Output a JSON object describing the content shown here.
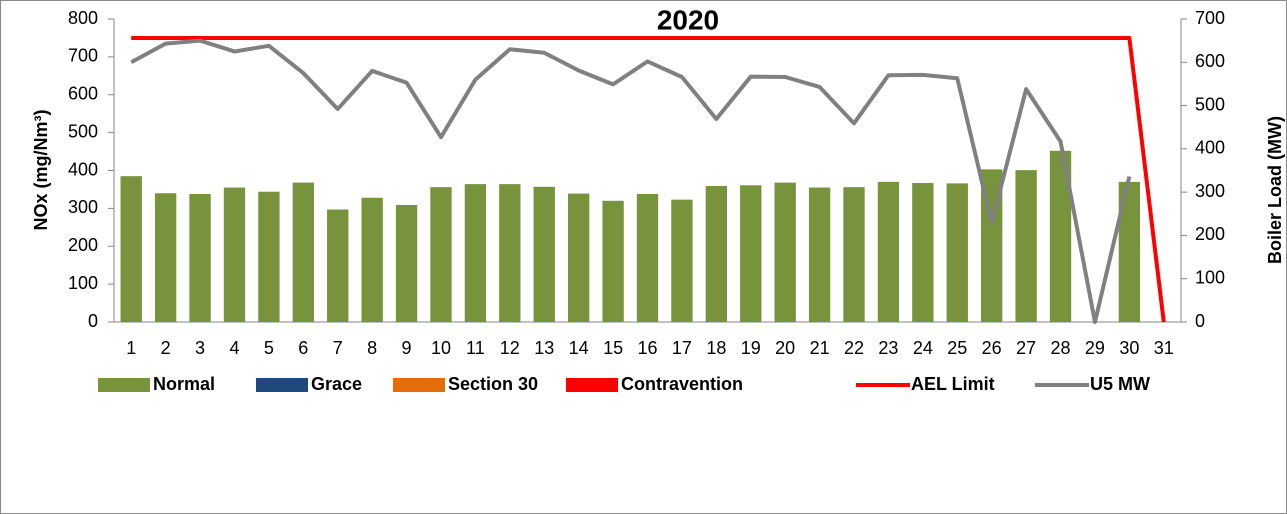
{
  "chart_data": {
    "type": "bar",
    "title": "2020",
    "ylabel": "NOx (mg/Nm³)",
    "y2label": "Boiler Load (MW)",
    "categories": [
      "1",
      "2",
      "3",
      "4",
      "5",
      "6",
      "7",
      "8",
      "9",
      "10",
      "11",
      "12",
      "13",
      "14",
      "15",
      "16",
      "17",
      "18",
      "19",
      "20",
      "21",
      "22",
      "23",
      "24",
      "25",
      "26",
      "27",
      "28",
      "29",
      "30",
      "31"
    ],
    "ylim": [
      0,
      800
    ],
    "yticks": [
      0,
      100,
      200,
      300,
      400,
      500,
      600,
      700,
      800
    ],
    "y2lim": [
      0,
      700
    ],
    "y2ticks": [
      0,
      100,
      200,
      300,
      400,
      500,
      600,
      700
    ],
    "grid": false,
    "legend": "bottom",
    "series": [
      {
        "name": "Normal",
        "color": "#77933c",
        "mark": "bar",
        "values": [
          385,
          340,
          338,
          355,
          344,
          368,
          297,
          328,
          309,
          356,
          364,
          364,
          357,
          339,
          320,
          338,
          323,
          359,
          361,
          368,
          355,
          356,
          370,
          367,
          366,
          403,
          401,
          452,
          null,
          370,
          null
        ]
      },
      {
        "name": "Grace",
        "color": "#1f497d",
        "mark": "bar"
      },
      {
        "name": "Section 30",
        "color": "#e46c0a",
        "mark": "bar"
      },
      {
        "name": "Contravention",
        "color": "#ff0000",
        "mark": "bar"
      },
      {
        "name": "AEL Limit",
        "color": "#ff0000",
        "mark": "line",
        "values": [
          750,
          750,
          750,
          750,
          750,
          750,
          750,
          750,
          750,
          750,
          750,
          750,
          750,
          750,
          750,
          750,
          750,
          750,
          750,
          750,
          750,
          750,
          750,
          750,
          750,
          750,
          750,
          750,
          750,
          750,
          0
        ]
      },
      {
        "name": "U5 MW",
        "color": "#808080",
        "mark": "line",
        "axis": "y2",
        "values": [
          600,
          643,
          650,
          625,
          638,
          575,
          492,
          580,
          553,
          427,
          560,
          630,
          622,
          581,
          549,
          602,
          566,
          469,
          567,
          566,
          543,
          459,
          570,
          571,
          563,
          229,
          538,
          417,
          0,
          336,
          null
        ]
      }
    ]
  }
}
